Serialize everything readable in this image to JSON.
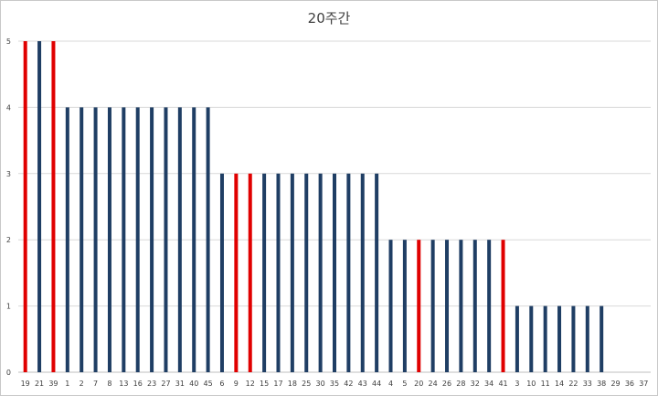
{
  "chart_data": {
    "type": "bar",
    "title": "20주간",
    "xlabel": "",
    "ylabel": "",
    "ylim": [
      0,
      5
    ],
    "yticks": [
      0,
      1,
      2,
      3,
      4,
      5
    ],
    "grid": true,
    "colors": {
      "default": "#1f3e64",
      "highlight": "#e00000",
      "grid": "#d9d9d9",
      "text": "#404040"
    },
    "categories": [
      "19",
      "21",
      "39",
      "1",
      "2",
      "7",
      "8",
      "13",
      "16",
      "23",
      "27",
      "31",
      "40",
      "45",
      "6",
      "9",
      "12",
      "15",
      "17",
      "18",
      "25",
      "30",
      "35",
      "42",
      "43",
      "44",
      "4",
      "5",
      "20",
      "24",
      "26",
      "28",
      "32",
      "34",
      "41",
      "3",
      "10",
      "11",
      "14",
      "22",
      "33",
      "38",
      "29",
      "36",
      "37"
    ],
    "values": [
      5,
      5,
      5,
      4,
      4,
      4,
      4,
      4,
      4,
      4,
      4,
      4,
      4,
      4,
      3,
      3,
      3,
      3,
      3,
      3,
      3,
      3,
      3,
      3,
      3,
      3,
      2,
      2,
      2,
      2,
      2,
      2,
      2,
      2,
      2,
      1,
      1,
      1,
      1,
      1,
      1,
      1,
      0,
      0,
      0
    ],
    "highlighted": [
      "19",
      "39",
      "9",
      "12",
      "20",
      "41"
    ]
  }
}
